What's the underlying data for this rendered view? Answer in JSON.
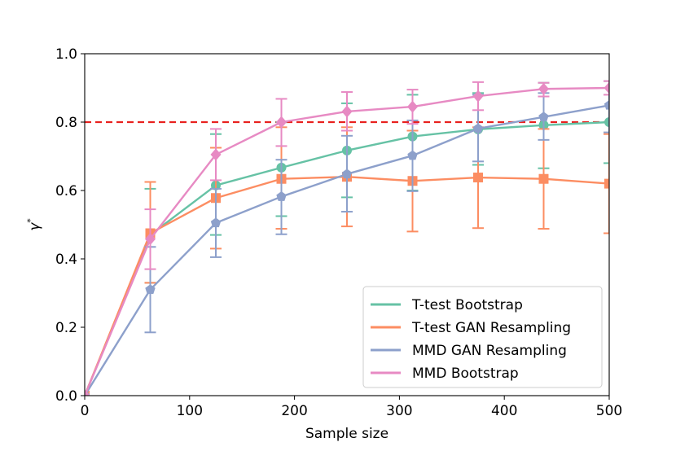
{
  "chart_data": {
    "type": "line",
    "title": "",
    "xlabel": "Sample size",
    "ylabel": "γ",
    "ylabel_superscript": "*",
    "xlim": [
      0,
      500
    ],
    "ylim": [
      0,
      1.0
    ],
    "xticks": [
      0,
      100,
      200,
      300,
      400,
      500
    ],
    "xtick_labels": [
      "0",
      "100",
      "200",
      "300",
      "400",
      "500"
    ],
    "yticks": [
      0,
      0.2,
      0.4,
      0.6,
      0.8,
      1.0
    ],
    "ytick_labels": [
      "0.0",
      "0.2",
      "0.4",
      "0.6",
      "0.8",
      "1.0"
    ],
    "grid": false,
    "legend_position": "bottom-right",
    "threshold": {
      "y": 0.8,
      "color": "#e8211f",
      "style": "dashed"
    },
    "x": [
      0,
      62.5,
      125,
      187.5,
      250,
      312.5,
      375,
      437.5,
      500
    ],
    "series": [
      {
        "name": "T-test Bootstrap",
        "color": "#66c2a5",
        "marker": "circle",
        "values": [
          0.0,
          0.47,
          0.615,
          0.667,
          0.717,
          0.758,
          0.779,
          0.791,
          0.8
        ],
        "err_low": [
          0.0,
          0.33,
          0.47,
          0.525,
          0.58,
          0.6,
          0.675,
          0.665,
          0.68
        ],
        "err_high": [
          0.0,
          0.605,
          0.765,
          0.8,
          0.855,
          0.88,
          0.885,
          0.915,
          0.92
        ]
      },
      {
        "name": "T-test GAN Resampling",
        "color": "#fc8d62",
        "marker": "square",
        "values": [
          0.0,
          0.475,
          0.578,
          0.634,
          0.64,
          0.628,
          0.638,
          0.634,
          0.62
        ],
        "err_low": [
          0.0,
          0.33,
          0.43,
          0.488,
          0.495,
          0.48,
          0.49,
          0.488,
          0.475
        ],
        "err_high": [
          0.0,
          0.625,
          0.725,
          0.785,
          0.785,
          0.775,
          0.785,
          0.78,
          0.765
        ]
      },
      {
        "name": "MMD GAN Resampling",
        "color": "#8da0cb",
        "marker": "pentagon",
        "values": [
          0.0,
          0.31,
          0.505,
          0.582,
          0.648,
          0.702,
          0.781,
          0.815,
          0.849
        ],
        "err_low": [
          0.0,
          0.185,
          0.405,
          0.472,
          0.538,
          0.598,
          0.685,
          0.748,
          0.77
        ],
        "err_high": [
          0.0,
          0.435,
          0.605,
          0.69,
          0.76,
          0.805,
          0.88,
          0.885,
          0.92
        ]
      },
      {
        "name": "MMD Bootstrap",
        "color": "#e78ac3",
        "marker": "diamond",
        "values": [
          0.0,
          0.458,
          0.705,
          0.8,
          0.831,
          0.845,
          0.876,
          0.897,
          0.9
        ],
        "err_low": [
          0.0,
          0.37,
          0.63,
          0.73,
          0.775,
          0.795,
          0.835,
          0.875,
          0.88
        ],
        "err_high": [
          0.0,
          0.545,
          0.78,
          0.868,
          0.888,
          0.895,
          0.917,
          0.915,
          0.92
        ]
      }
    ]
  }
}
